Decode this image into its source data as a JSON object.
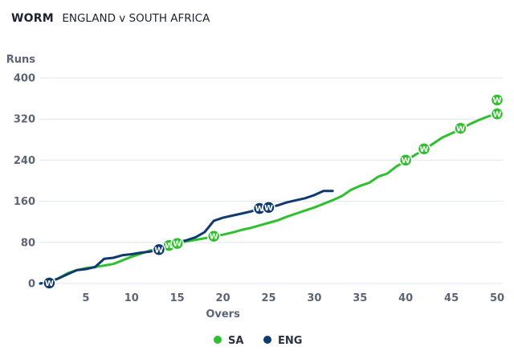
{
  "header": {
    "title": "WORM",
    "subtitle": "ENGLAND v SOUTH AFRICA"
  },
  "colors": {
    "SA": "#2fbf2f",
    "ENG": "#0d3a70",
    "grid": "#dfe3ea",
    "axis": "#5c6475"
  },
  "wicket_marker": "W",
  "chart_data": {
    "type": "line",
    "xlabel": "Overs",
    "ylabel": "Runs",
    "xlim": [
      0,
      50
    ],
    "ylim": [
      0,
      400
    ],
    "xticks": [
      "5",
      "10",
      "15",
      "20",
      "25",
      "30",
      "35",
      "40",
      "45",
      "50"
    ],
    "yticks": [
      "0",
      "80",
      "160",
      "240",
      "320",
      "400"
    ],
    "grid": "horizontal",
    "legend": "bottom-center",
    "series": [
      {
        "name": "SA",
        "color": "#2fbf2f",
        "x": [
          0,
          1,
          2,
          3,
          4,
          5,
          6,
          7,
          8,
          9,
          10,
          11,
          12,
          13,
          14,
          15,
          16,
          17,
          18,
          19,
          20,
          21,
          22,
          23,
          24,
          25,
          26,
          27,
          28,
          29,
          30,
          31,
          32,
          33,
          34,
          35,
          36,
          37,
          38,
          39,
          40,
          41,
          42,
          43,
          44,
          45,
          46,
          47,
          48,
          49,
          50
        ],
        "y": [
          0,
          3,
          10,
          20,
          26,
          30,
          32,
          35,
          38,
          45,
          52,
          58,
          64,
          68,
          72,
          78,
          82,
          85,
          88,
          92,
          95,
          99,
          104,
          108,
          113,
          118,
          123,
          130,
          136,
          142,
          148,
          155,
          162,
          170,
          182,
          190,
          196,
          208,
          214,
          228,
          238,
          250,
          260,
          272,
          284,
          292,
          300,
          310,
          318,
          325,
          330
        ],
        "wickets": [
          {
            "over": 13.0,
            "runs": 66
          },
          {
            "over": 14.1,
            "runs": 74
          },
          {
            "over": 15.0,
            "runs": 78
          },
          {
            "over": 19.0,
            "runs": 92
          },
          {
            "over": 40.0,
            "runs": 240
          },
          {
            "over": 42.0,
            "runs": 262
          },
          {
            "over": 46.0,
            "runs": 302
          },
          {
            "over": 50.0,
            "runs": 330
          },
          {
            "over": 50.0,
            "runs": 357
          }
        ]
      },
      {
        "name": "ENG",
        "color": "#0d3a70",
        "x": [
          0,
          1,
          2,
          3,
          4,
          5,
          6,
          7,
          8,
          9,
          10,
          11,
          12,
          13,
          14,
          15,
          16,
          17,
          18,
          19,
          20,
          21,
          22,
          23,
          24,
          25,
          26,
          27,
          28,
          29,
          30,
          31,
          32
        ],
        "y": [
          0,
          3,
          10,
          18,
          26,
          28,
          32,
          48,
          50,
          55,
          57,
          60,
          62,
          66,
          72,
          80,
          84,
          90,
          100,
          122,
          128,
          132,
          136,
          140,
          145,
          148,
          152,
          158,
          162,
          166,
          172,
          180,
          180
        ],
        "wickets": [
          {
            "over": 1.0,
            "runs": 1
          },
          {
            "over": 13.0,
            "runs": 66
          },
          {
            "over": 24.0,
            "runs": 146
          },
          {
            "over": 25.0,
            "runs": 148
          }
        ]
      }
    ]
  }
}
